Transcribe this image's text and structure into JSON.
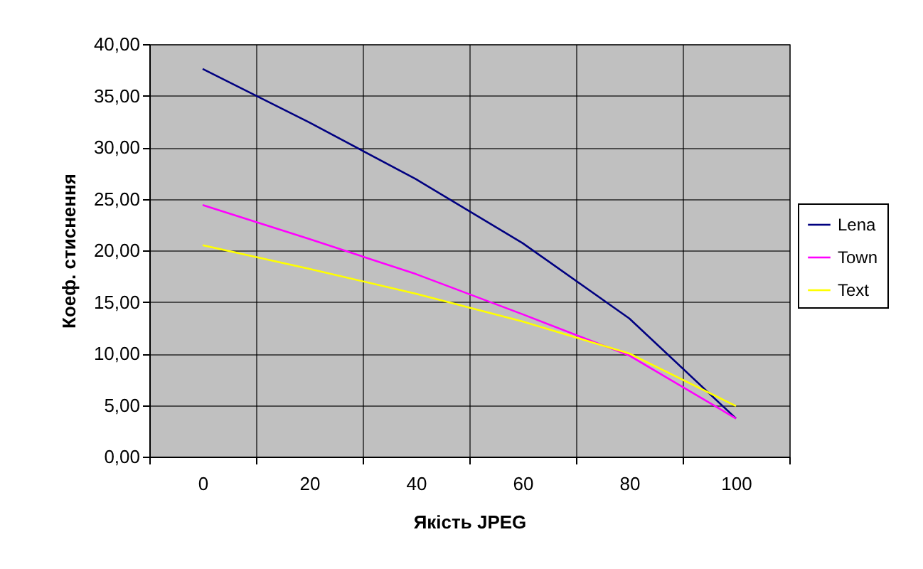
{
  "chart_data": {
    "type": "line",
    "xlabel": "Якість JPEG",
    "ylabel": "Коеф. стиснення",
    "categories": [
      "0",
      "20",
      "40",
      "60",
      "80",
      "100"
    ],
    "series": [
      {
        "name": "Lena",
        "color": "#000080",
        "values": [
          37.6,
          32.4,
          26.9,
          20.7,
          13.4,
          3.7
        ]
      },
      {
        "name": "Town",
        "color": "#ff00ff",
        "values": [
          24.4,
          21.1,
          17.7,
          13.8,
          9.8,
          3.7
        ]
      },
      {
        "name": "Text",
        "color": "#ffff00",
        "values": [
          20.5,
          18.2,
          15.8,
          13.1,
          10.0,
          4.9
        ]
      }
    ],
    "ylim": [
      0,
      40
    ],
    "yticks": [
      {
        "value": 0,
        "label": "0,00"
      },
      {
        "value": 5,
        "label": "5,00"
      },
      {
        "value": 10,
        "label": "10,00"
      },
      {
        "value": 15,
        "label": "15,00"
      },
      {
        "value": 20,
        "label": "20,00"
      },
      {
        "value": 25,
        "label": "25,00"
      },
      {
        "value": 30,
        "label": "30,00"
      },
      {
        "value": 35,
        "label": "35,00"
      },
      {
        "value": 40,
        "label": "40,00"
      }
    ],
    "grid": true,
    "legend": "right",
    "marker": "none",
    "line_style": "solid"
  }
}
